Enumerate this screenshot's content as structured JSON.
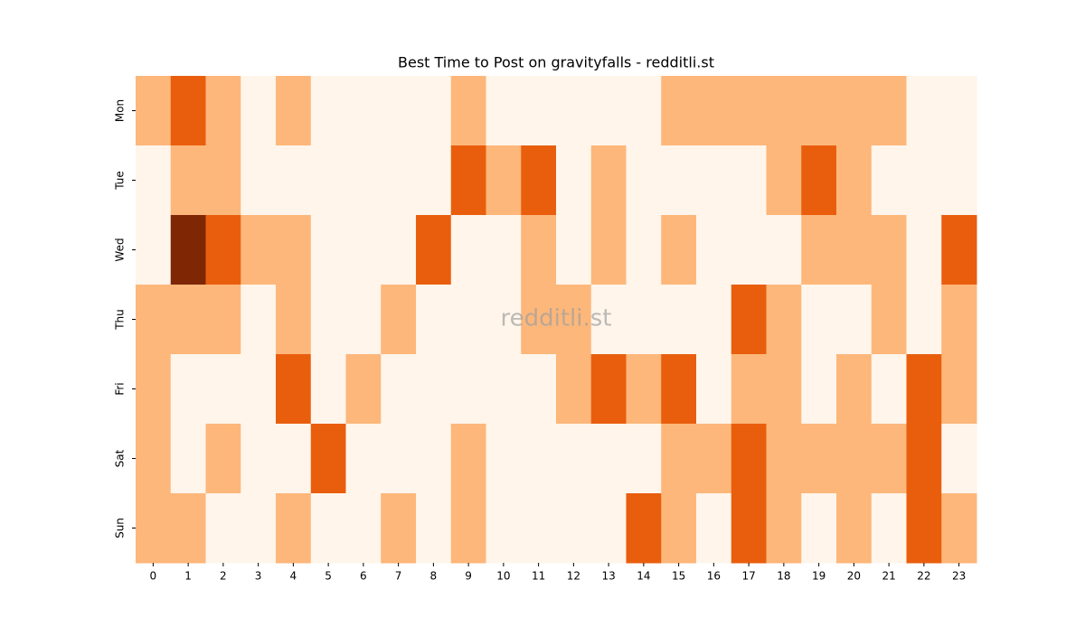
{
  "chart_data": {
    "type": "heatmap",
    "title": "Best Time to Post on gravityfalls - redditli.st",
    "watermark": "redditli.st",
    "x": [
      0,
      1,
      2,
      3,
      4,
      5,
      6,
      7,
      8,
      9,
      10,
      11,
      12,
      13,
      14,
      15,
      16,
      17,
      18,
      19,
      20,
      21,
      22,
      23
    ],
    "y": [
      "Mon",
      "Tue",
      "Wed",
      "Thu",
      "Fri",
      "Sat",
      "Sun"
    ],
    "colors": [
      "#fff5eb",
      "#fdb77a",
      "#e95e0d",
      "#7f2704"
    ],
    "values": [
      [
        1,
        2,
        1,
        0,
        1,
        0,
        0,
        0,
        0,
        1,
        0,
        0,
        0,
        0,
        0,
        1,
        1,
        1,
        1,
        1,
        1,
        1,
        0,
        0
      ],
      [
        0,
        1,
        1,
        0,
        0,
        0,
        0,
        0,
        0,
        2,
        1,
        2,
        0,
        1,
        0,
        0,
        0,
        0,
        1,
        2,
        1,
        0,
        0,
        0
      ],
      [
        0,
        3,
        2,
        1,
        1,
        0,
        0,
        0,
        2,
        0,
        0,
        1,
        0,
        1,
        0,
        1,
        0,
        0,
        0,
        1,
        1,
        1,
        0,
        2
      ],
      [
        1,
        1,
        1,
        0,
        1,
        0,
        0,
        1,
        0,
        0,
        0,
        1,
        1,
        0,
        0,
        0,
        0,
        2,
        1,
        0,
        0,
        1,
        0,
        1
      ],
      [
        1,
        0,
        0,
        0,
        2,
        0,
        1,
        0,
        0,
        0,
        0,
        0,
        1,
        2,
        1,
        2,
        0,
        1,
        1,
        0,
        1,
        0,
        2,
        1
      ],
      [
        1,
        0,
        1,
        0,
        0,
        2,
        0,
        0,
        0,
        1,
        0,
        0,
        0,
        0,
        0,
        1,
        1,
        2,
        1,
        1,
        1,
        1,
        2,
        0
      ],
      [
        1,
        1,
        0,
        0,
        1,
        0,
        0,
        1,
        0,
        1,
        0,
        0,
        0,
        0,
        2,
        1,
        0,
        2,
        1,
        0,
        1,
        0,
        2,
        1
      ]
    ]
  }
}
